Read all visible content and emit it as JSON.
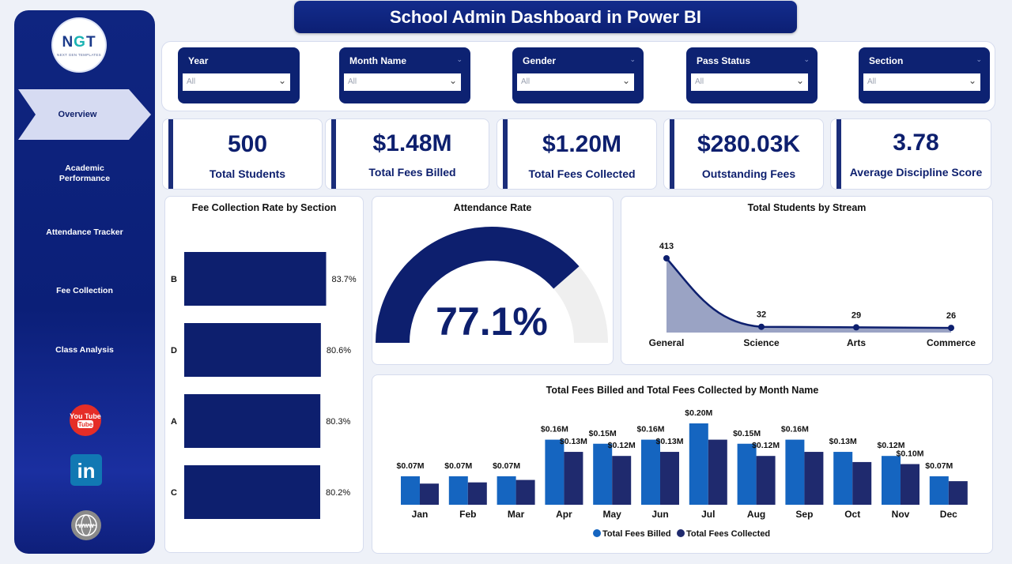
{
  "title": "School Admin Dashboard in Power BI",
  "logo": {
    "mark_left": "N",
    "mark_mid": "G",
    "mark_right": "T",
    "sub": "NEXT GEN TEMPLATES"
  },
  "sidebar": {
    "items": [
      {
        "label": "Overview",
        "active": true
      },
      {
        "label": "Academic Performance",
        "active": false
      },
      {
        "label": "Attendance Tracker",
        "active": false
      },
      {
        "label": "Fee Collection",
        "active": false
      },
      {
        "label": "Class Analysis",
        "active": false
      }
    ],
    "social": [
      {
        "icon": "youtube-icon",
        "text": "You Tube",
        "color": "#e52d27"
      },
      {
        "icon": "linkedin-icon",
        "text": "in",
        "color": "#1178b3"
      },
      {
        "icon": "globe-icon",
        "text": "WWW",
        "color": "#8a8a8a"
      }
    ]
  },
  "filters": [
    {
      "label": "Year",
      "value": "All"
    },
    {
      "label": "Month Name",
      "value": "All"
    },
    {
      "label": "Gender",
      "value": "All"
    },
    {
      "label": "Pass Status",
      "value": "All"
    },
    {
      "label": "Section",
      "value": "All"
    }
  ],
  "kpis": [
    {
      "value": "500",
      "label": "Total Students"
    },
    {
      "value": "$1.48M",
      "label": "Total Fees Billed"
    },
    {
      "value": "$1.20M",
      "label": "Total Fees Collected"
    },
    {
      "value": "$280.03K",
      "label": "Outstanding Fees"
    },
    {
      "value": "3.78",
      "label": "Average Discipline Score"
    }
  ],
  "colors": {
    "navy": "#0d1f6e",
    "billed": "#1565c0",
    "collected": "#1f2a6e",
    "area_fill": "#9aa3c4",
    "gauge_bg": "#efefef"
  },
  "chart_data": [
    {
      "type": "bar",
      "orientation": "horizontal",
      "title": "Fee Collection Rate by Section",
      "categories": [
        "B",
        "D",
        "A",
        "C"
      ],
      "values": [
        83.7,
        80.6,
        80.3,
        80.2
      ],
      "labels": [
        "83.7%",
        "80.6%",
        "80.3%",
        "80.2%"
      ]
    },
    {
      "type": "gauge",
      "title": "Attendance Rate",
      "value": 77.1,
      "max": 100,
      "label": "77.1%"
    },
    {
      "type": "area",
      "title": "Total Students by Stream",
      "categories": [
        "General",
        "Science",
        "Arts",
        "Commerce"
      ],
      "values": [
        413,
        32,
        29,
        26
      ]
    },
    {
      "type": "bar",
      "title": "Total Fees Billed and Total Fees Collected by Month Name",
      "categories": [
        "Jan",
        "Feb",
        "Mar",
        "Apr",
        "May",
        "Jun",
        "Jul",
        "Aug",
        "Sep",
        "Oct",
        "Nov",
        "Dec"
      ],
      "series": [
        {
          "name": "Total Fees Billed",
          "values": [
            0.07,
            0.07,
            0.07,
            0.16,
            0.15,
            0.16,
            0.2,
            0.15,
            0.16,
            0.13,
            0.12,
            0.07
          ]
        },
        {
          "name": "Total Fees Collected",
          "values": [
            0.052,
            0.055,
            0.061,
            0.13,
            0.12,
            0.13,
            0.16,
            0.12,
            0.13,
            0.105,
            0.1,
            0.058
          ]
        }
      ],
      "data_labels": [
        {
          "month": "Jan",
          "text": "$0.07M"
        },
        {
          "month": "Feb",
          "text": "$0.07M"
        },
        {
          "month": "Mar",
          "text": "$0.07M"
        },
        {
          "month": "Apr",
          "text": "$0.16M"
        },
        {
          "month": "Apr",
          "text": "$0.13M"
        },
        {
          "month": "May",
          "text": "$0.15M"
        },
        {
          "month": "May",
          "text": "$0.12M"
        },
        {
          "month": "Jun",
          "text": "$0.16M"
        },
        {
          "month": "Jun",
          "text": "$0.13M"
        },
        {
          "month": "Jul",
          "text": "$0.20M"
        },
        {
          "month": "Aug",
          "text": "$0.15M"
        },
        {
          "month": "Aug",
          "text": "$0.12M"
        },
        {
          "month": "Sep",
          "text": "$0.16M"
        },
        {
          "month": "Oct",
          "text": "$0.13M"
        },
        {
          "month": "Nov",
          "text": "$0.12M"
        },
        {
          "month": "Nov",
          "text": "$0.10M"
        },
        {
          "month": "Dec",
          "text": "$0.07M"
        }
      ],
      "legend_position": "bottom"
    }
  ]
}
